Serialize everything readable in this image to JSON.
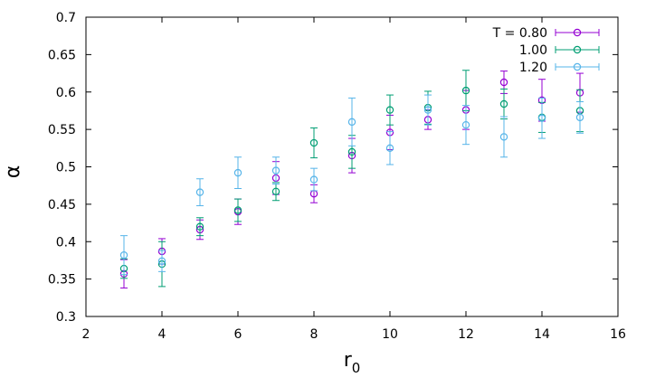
{
  "chart_data": {
    "type": "scatter",
    "title": "",
    "xlabel": "r",
    "xlabel_subscript": "0",
    "ylabel": "α",
    "xlim": [
      2,
      16
    ],
    "ylim": [
      0.3,
      0.7
    ],
    "x_ticks": [
      2,
      4,
      6,
      8,
      10,
      12,
      14,
      16
    ],
    "y_ticks": [
      0.3,
      0.35,
      0.4,
      0.45,
      0.5,
      0.55,
      0.6,
      0.65,
      0.7
    ],
    "x_tick_labels": [
      "2",
      "4",
      "6",
      "8",
      "10",
      "12",
      "14",
      "16"
    ],
    "y_tick_labels": [
      "0.3",
      "0.35",
      "0.4",
      "0.45",
      "0.5",
      "0.55",
      "0.6",
      "0.65",
      "0.7"
    ],
    "grid": false,
    "legend_position": "top-right",
    "series": [
      {
        "name": "T = 0.80",
        "color": "#9400d3",
        "points": [
          {
            "x": 3,
            "y": 0.357,
            "err": 0.019
          },
          {
            "x": 4,
            "y": 0.387,
            "err": 0.017
          },
          {
            "x": 5,
            "y": 0.416,
            "err": 0.013
          },
          {
            "x": 6,
            "y": 0.44,
            "err": 0.017
          },
          {
            "x": 7,
            "y": 0.485,
            "err": 0.022
          },
          {
            "x": 8,
            "y": 0.464,
            "err": 0.012
          },
          {
            "x": 9,
            "y": 0.515,
            "err": 0.023
          },
          {
            "x": 10,
            "y": 0.546,
            "err": 0.023
          },
          {
            "x": 11,
            "y": 0.563,
            "err": 0.013
          },
          {
            "x": 12,
            "y": 0.576,
            "err": 0.026
          },
          {
            "x": 13,
            "y": 0.613,
            "err": 0.015
          },
          {
            "x": 14,
            "y": 0.589,
            "err": 0.028
          },
          {
            "x": 15,
            "y": 0.599,
            "err": 0.026
          }
        ]
      },
      {
        "name": "1.00",
        "color": "#009e73",
        "points": [
          {
            "x": 3,
            "y": 0.364,
            "err": 0.013
          },
          {
            "x": 4,
            "y": 0.37,
            "err": 0.03
          },
          {
            "x": 5,
            "y": 0.42,
            "err": 0.012
          },
          {
            "x": 6,
            "y": 0.442,
            "err": 0.015
          },
          {
            "x": 7,
            "y": 0.467,
            "err": 0.012
          },
          {
            "x": 8,
            "y": 0.532,
            "err": 0.02
          },
          {
            "x": 9,
            "y": 0.52,
            "err": 0.022
          },
          {
            "x": 10,
            "y": 0.576,
            "err": 0.02
          },
          {
            "x": 11,
            "y": 0.579,
            "err": 0.022
          },
          {
            "x": 12,
            "y": 0.602,
            "err": 0.027
          },
          {
            "x": 13,
            "y": 0.584,
            "err": 0.02
          },
          {
            "x": 14,
            "y": 0.566,
            "err": 0.02
          },
          {
            "x": 15,
            "y": 0.575,
            "err": 0.028
          }
        ]
      },
      {
        "name": "1.20",
        "color": "#56b4e9",
        "points": [
          {
            "x": 3,
            "y": 0.382,
            "err": 0.026
          },
          {
            "x": 4,
            "y": 0.374,
            "err": 0.014
          },
          {
            "x": 5,
            "y": 0.466,
            "err": 0.018
          },
          {
            "x": 6,
            "y": 0.492,
            "err": 0.021
          },
          {
            "x": 7,
            "y": 0.495,
            "err": 0.018
          },
          {
            "x": 8,
            "y": 0.483,
            "err": 0.015
          },
          {
            "x": 9,
            "y": 0.56,
            "err": 0.032
          },
          {
            "x": 10,
            "y": 0.525,
            "err": 0.022
          },
          {
            "x": 11,
            "y": 0.576,
            "err": 0.02
          },
          {
            "x": 12,
            "y": 0.556,
            "err": 0.026
          },
          {
            "x": 13,
            "y": 0.54,
            "err": 0.027
          },
          {
            "x": 14,
            "y": 0.565,
            "err": 0.027
          },
          {
            "x": 15,
            "y": 0.566,
            "err": 0.021
          }
        ]
      }
    ]
  }
}
